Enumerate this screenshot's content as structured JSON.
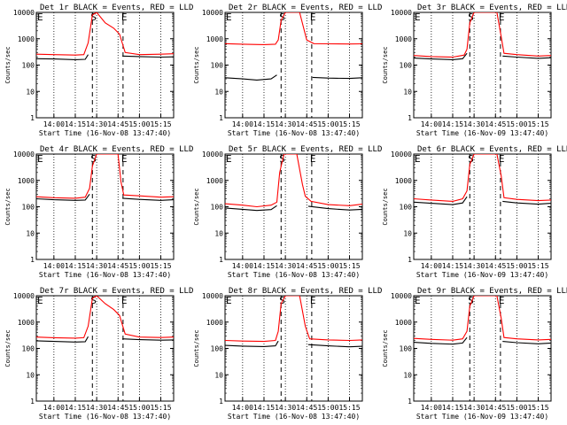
{
  "chart_data": [
    {
      "type": "line",
      "title": "Det 1r BLACK = Events, RED = LLD",
      "ylabel": "Counts/sec",
      "xlabel": "Start Time (16-Nov-08 13:47:40)",
      "x_ticks": [
        "14:00",
        "14:15",
        "14:30",
        "14:45",
        "15:00",
        "15:15"
      ],
      "y_ticks": [
        "1",
        "10",
        "100",
        "1000",
        "10000"
      ],
      "ylim": [
        1,
        10000
      ],
      "y_scale": "log",
      "markers": [
        "E",
        "S",
        "E"
      ],
      "series": [
        {
          "color": "#ff0000",
          "x": [
            "13:47:40",
            "14:00",
            "14:15",
            "14:21",
            "14:24",
            "14:27",
            "14:30",
            "14:36",
            "14:42",
            "14:46",
            "14:50",
            "15:00",
            "15:15",
            "15:24"
          ],
          "values": [
            260,
            250,
            240,
            250,
            700,
            8000,
            10000,
            4000,
            2500,
            1500,
            300,
            250,
            260,
            270
          ]
        },
        {
          "color": "#000000",
          "x": [
            "13:47:40",
            "14:00",
            "14:15",
            "14:22",
            "14:24",
            "14:46",
            "14:48",
            "15:00",
            "15:15",
            "15:24"
          ],
          "values": [
            175,
            170,
            160,
            165,
            250,
            null,
            220,
            210,
            200,
            205
          ]
        }
      ]
    },
    {
      "type": "line",
      "title": "Det 2r BLACK = Events, RED = LLD",
      "ylabel": "Counts/sec",
      "xlabel": "Start Time (16-Nov-08 13:47:40)",
      "x_ticks": [
        "14:00",
        "14:15",
        "14:30",
        "14:45",
        "15:00",
        "15:15"
      ],
      "y_ticks": [
        "1",
        "10",
        "100",
        "1000",
        "10000"
      ],
      "ylim": [
        1,
        10000
      ],
      "y_scale": "log",
      "markers": [
        "E",
        "S",
        "E"
      ],
      "series": [
        {
          "color": "#ff0000",
          "x": [
            "13:47:40",
            "14:00",
            "14:15",
            "14:23",
            "14:25",
            "14:27",
            "14:30",
            "14:40",
            "14:45",
            "14:50",
            "15:00",
            "15:15",
            "15:24"
          ],
          "values": [
            650,
            620,
            600,
            620,
            900,
            5000,
            10000,
            10000,
            900,
            650,
            640,
            630,
            640
          ]
        },
        {
          "color": "#000000",
          "x": [
            "13:47:40",
            "14:00",
            "14:10",
            "14:20",
            "14:24",
            "14:25",
            "14:48",
            "14:49",
            "15:00",
            "15:15",
            "15:24"
          ],
          "values": [
            33,
            30,
            27,
            30,
            42,
            null,
            null,
            34,
            32,
            31,
            33
          ]
        }
      ]
    },
    {
      "type": "line",
      "title": "Det 3r BLACK = Events, RED = LLD",
      "ylabel": "Counts/sec",
      "xlabel": "Start Time (16-Nov-09 13:47:40)",
      "x_ticks": [
        "14:00",
        "14:15",
        "14:30",
        "14:45",
        "15:00",
        "15:15"
      ],
      "y_ticks": [
        "1",
        "10",
        "100",
        "1000",
        "10000"
      ],
      "ylim": [
        1,
        10000
      ],
      "y_scale": "log",
      "markers": [
        "E",
        "S",
        "E"
      ],
      "series": [
        {
          "color": "#ff0000",
          "x": [
            "13:47:40",
            "14:00",
            "14:15",
            "14:23",
            "14:25",
            "14:27",
            "14:30",
            "14:46",
            "14:49",
            "14:51",
            "15:00",
            "15:15",
            "15:24"
          ],
          "values": [
            230,
            210,
            200,
            240,
            400,
            4000,
            10000,
            10000,
            1200,
            280,
            250,
            220,
            230
          ]
        },
        {
          "color": "#000000",
          "x": [
            "13:47:40",
            "14:00",
            "14:15",
            "14:22",
            "14:25",
            "14:26",
            "14:48",
            "14:50",
            "15:00",
            "15:15",
            "15:24"
          ],
          "values": [
            185,
            170,
            160,
            175,
            280,
            null,
            null,
            220,
            200,
            180,
            190
          ]
        }
      ]
    },
    {
      "type": "line",
      "title": "Det 4r BLACK = Events, RED = LLD",
      "ylabel": "Counts/sec",
      "xlabel": "Start Time (16-Nov-08 13:47:40)",
      "x_ticks": [
        "14:00",
        "14:15",
        "14:30",
        "14:45",
        "15:00",
        "15:15"
      ],
      "y_ticks": [
        "1",
        "10",
        "100",
        "1000",
        "10000"
      ],
      "ylim": [
        1,
        10000
      ],
      "y_scale": "log",
      "markers": [
        "E",
        "S",
        "E"
      ],
      "series": [
        {
          "color": "#ff0000",
          "x": [
            "13:47:40",
            "14:00",
            "14:15",
            "14:22",
            "14:25",
            "14:27",
            "14:30",
            "14:45",
            "14:47",
            "14:49",
            "15:00",
            "15:15",
            "15:24"
          ],
          "values": [
            240,
            220,
            210,
            230,
            500,
            3500,
            10000,
            10000,
            900,
            280,
            260,
            230,
            240
          ]
        },
        {
          "color": "#000000",
          "x": [
            "13:47:40",
            "14:00",
            "14:15",
            "14:22",
            "14:25",
            "14:26",
            "14:46",
            "14:48",
            "15:00",
            "15:15",
            "15:24"
          ],
          "values": [
            200,
            185,
            175,
            180,
            300,
            null,
            null,
            210,
            190,
            175,
            185
          ]
        }
      ]
    },
    {
      "type": "line",
      "title": "Det 5r BLACK = Events, RED = LLD",
      "ylabel": "Counts/sec",
      "xlabel": "Start Time (16-Nov-08 13:47:40)",
      "x_ticks": [
        "14:00",
        "14:15",
        "14:30",
        "14:45",
        "15:00",
        "15:15"
      ],
      "y_ticks": [
        "1",
        "10",
        "100",
        "1000",
        "10000"
      ],
      "ylim": [
        1,
        10000
      ],
      "y_scale": "log",
      "markers": [
        "E",
        "S",
        "E"
      ],
      "series": [
        {
          "color": "#ff0000",
          "x": [
            "13:47:40",
            "14:00",
            "14:10",
            "14:20",
            "14:24",
            "14:26",
            "14:29",
            "14:38",
            "14:42",
            "14:44",
            "14:48",
            "15:00",
            "15:15",
            "15:24"
          ],
          "values": [
            130,
            115,
            100,
            115,
            150,
            2000,
            10000,
            10000,
            700,
            250,
            160,
            120,
            110,
            125
          ]
        },
        {
          "color": "#000000",
          "x": [
            "13:47:40",
            "14:00",
            "14:10",
            "14:20",
            "14:24",
            "14:25",
            "14:44",
            "14:46",
            "15:00",
            "15:15",
            "15:24"
          ],
          "values": [
            90,
            80,
            72,
            78,
            110,
            null,
            null,
            105,
            85,
            75,
            80
          ]
        }
      ]
    },
    {
      "type": "line",
      "title": "Det 6r BLACK = Events, RED = LLD",
      "ylabel": "Counts/sec",
      "xlabel": "Start Time (16-Nov-09 13:47:40)",
      "x_ticks": [
        "14:00",
        "14:15",
        "14:30",
        "14:45",
        "15:00",
        "15:15"
      ],
      "y_ticks": [
        "1",
        "10",
        "100",
        "1000",
        "10000"
      ],
      "ylim": [
        1,
        10000
      ],
      "y_scale": "log",
      "markers": [
        "E",
        "S",
        "E"
      ],
      "series": [
        {
          "color": "#ff0000",
          "x": [
            "13:47:40",
            "14:00",
            "14:15",
            "14:22",
            "14:25",
            "14:27",
            "14:30",
            "14:46",
            "14:49",
            "14:51",
            "15:00",
            "15:15",
            "15:24"
          ],
          "values": [
            200,
            180,
            160,
            200,
            400,
            4000,
            10000,
            10000,
            1500,
            220,
            190,
            170,
            180
          ]
        },
        {
          "color": "#000000",
          "x": [
            "13:47:40",
            "14:00",
            "14:15",
            "14:22",
            "14:25",
            "14:26",
            "14:48",
            "14:50",
            "15:00",
            "15:15",
            "15:24"
          ],
          "values": [
            150,
            135,
            120,
            140,
            240,
            null,
            null,
            160,
            140,
            125,
            135
          ]
        }
      ]
    },
    {
      "type": "line",
      "title": "Det 7r BLACK = Events, RED = LLD",
      "ylabel": "Counts/sec",
      "xlabel": "Start Time (16-Nov-08 13:47:40)",
      "x_ticks": [
        "14:00",
        "14:15",
        "14:30",
        "14:45",
        "15:00",
        "15:15"
      ],
      "y_ticks": [
        "1",
        "10",
        "100",
        "1000",
        "10000"
      ],
      "ylim": [
        1,
        10000
      ],
      "y_scale": "log",
      "markers": [
        "E",
        "S",
        "E"
      ],
      "series": [
        {
          "color": "#ff0000",
          "x": [
            "13:47:40",
            "14:00",
            "14:15",
            "14:21",
            "14:24",
            "14:27",
            "14:30",
            "14:36",
            "14:42",
            "14:46",
            "14:50",
            "15:00",
            "15:15",
            "15:24"
          ],
          "values": [
            270,
            255,
            245,
            255,
            700,
            8000,
            10000,
            5000,
            3000,
            1800,
            350,
            270,
            260,
            270
          ]
        },
        {
          "color": "#000000",
          "x": [
            "13:47:40",
            "14:00",
            "14:15",
            "14:22",
            "14:24",
            "14:46",
            "14:48",
            "15:00",
            "15:15",
            "15:24"
          ],
          "values": [
            195,
            185,
            175,
            180,
            280,
            null,
            230,
            215,
            205,
            210
          ]
        }
      ]
    },
    {
      "type": "line",
      "title": "Det 8r BLACK = Events, RED = LLD",
      "ylabel": "Counts/sec",
      "xlabel": "Start Time (16-Nov-08 13:47:40)",
      "x_ticks": [
        "14:00",
        "14:15",
        "14:30",
        "14:45",
        "15:00",
        "15:15"
      ],
      "y_ticks": [
        "1",
        "10",
        "100",
        "1000",
        "10000"
      ],
      "ylim": [
        1,
        10000
      ],
      "y_scale": "log",
      "markers": [
        "E",
        "S",
        "E"
      ],
      "series": [
        {
          "color": "#ff0000",
          "x": [
            "13:47:40",
            "14:00",
            "14:15",
            "14:23",
            "14:25",
            "14:27",
            "14:30",
            "14:40",
            "14:44",
            "14:47",
            "15:00",
            "15:15",
            "15:24"
          ],
          "values": [
            200,
            190,
            185,
            200,
            450,
            5000,
            10000,
            10000,
            700,
            230,
            210,
            200,
            210
          ]
        },
        {
          "color": "#000000",
          "x": [
            "13:47:40",
            "14:00",
            "14:15",
            "14:23",
            "14:25",
            "14:26",
            "14:44",
            "14:46",
            "15:00",
            "15:15",
            "15:24"
          ],
          "values": [
            130,
            122,
            118,
            125,
            190,
            null,
            null,
            140,
            125,
            115,
            120
          ]
        }
      ]
    },
    {
      "type": "line",
      "title": "Det 9r BLACK = Events, RED = LLD",
      "ylabel": "Counts/sec",
      "xlabel": "Start Time (16-Nov-09 13:47:40)",
      "x_ticks": [
        "14:00",
        "14:15",
        "14:30",
        "14:45",
        "15:00",
        "15:15"
      ],
      "y_ticks": [
        "1",
        "10",
        "100",
        "1000",
        "10000"
      ],
      "ylim": [
        1,
        10000
      ],
      "y_scale": "log",
      "markers": [
        "E",
        "S",
        "E"
      ],
      "series": [
        {
          "color": "#ff0000",
          "x": [
            "13:47:40",
            "14:00",
            "14:15",
            "14:22",
            "14:25",
            "14:27",
            "14:30",
            "14:46",
            "14:49",
            "14:51",
            "15:00",
            "15:15",
            "15:24"
          ],
          "values": [
            240,
            220,
            205,
            230,
            450,
            4000,
            10000,
            10000,
            1400,
            260,
            230,
            210,
            220
          ]
        },
        {
          "color": "#000000",
          "x": [
            "13:47:40",
            "14:00",
            "14:15",
            "14:22",
            "14:25",
            "14:26",
            "14:48",
            "14:50",
            "15:00",
            "15:15",
            "15:24"
          ],
          "values": [
            170,
            155,
            145,
            160,
            260,
            null,
            null,
            185,
            165,
            150,
            160
          ]
        }
      ]
    }
  ]
}
